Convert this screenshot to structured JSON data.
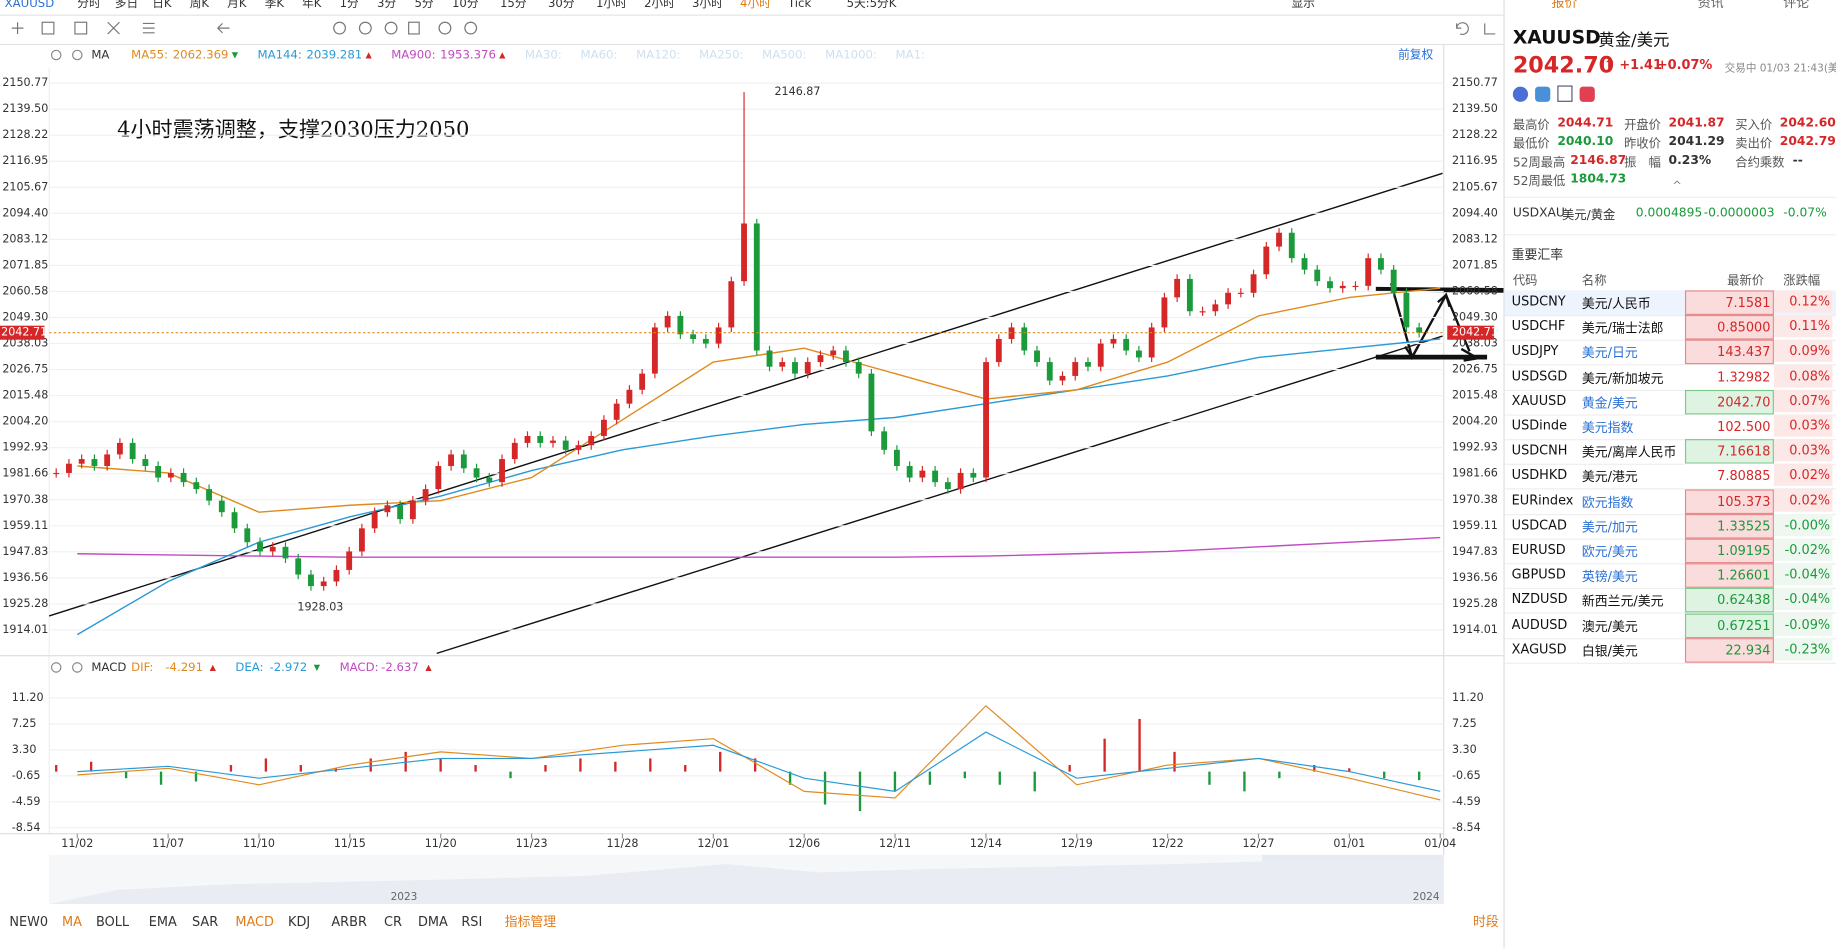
{
  "toolbar": {
    "symbol": "XAUUSD",
    "periods": [
      "分时",
      "多日",
      "日K",
      "周K",
      "月K",
      "季K",
      "年K",
      "1分",
      "3分",
      "5分",
      "10分",
      "15分",
      "30分",
      "1小时",
      "2小时",
      "3小时",
      "4小时",
      "Tick",
      "5天:5分K"
    ],
    "active": "4小时",
    "display": "显示"
  },
  "chart": {
    "ma_legend": {
      "name": "MA",
      "items": [
        {
          "label": "MA55:",
          "value": "2062.369",
          "color": "#e08a1e",
          "dir": "down"
        },
        {
          "label": "MA144:",
          "value": "2039.281",
          "color": "#2a9ad6",
          "dir": "up"
        },
        {
          "label": "MA900:",
          "value": "1953.376",
          "color": "#c04ac0",
          "dir": "up"
        }
      ],
      "faded": [
        "MA30:",
        "MA60:",
        "MA120:",
        "MA250:",
        "MA500:",
        "MA1000:",
        "MA1:"
      ]
    },
    "restore": "前复权",
    "annotation": "4小时震荡调整，支撑2030压力2050",
    "price_axis": [
      "2150.77",
      "2139.50",
      "2128.22",
      "2116.95",
      "2105.67",
      "2094.40",
      "2083.12",
      "2071.85",
      "2060.58",
      "2049.30",
      "2038.03",
      "2026.75",
      "2015.48",
      "2004.20",
      "1992.93",
      "1981.66",
      "1970.38",
      "1959.11",
      "1947.83",
      "1936.56",
      "1925.28",
      "1914.01"
    ],
    "current_price": "2042.71",
    "high_label": "2146.87",
    "low_label": "1928.03",
    "dates": [
      "11/02",
      "11/07",
      "11/10",
      "11/15",
      "11/20",
      "11/23",
      "11/28",
      "12/01",
      "12/06",
      "12/11",
      "12/14",
      "12/19",
      "12/22",
      "12/27",
      "01/01",
      "01/04"
    ],
    "closes": [
      1982,
      1986,
      1988,
      1985,
      1990,
      1995,
      1988,
      1985,
      1980,
      1982,
      1978,
      1975,
      1970,
      1965,
      1958,
      1952,
      1948,
      1950,
      1945,
      1938,
      1933,
      1935,
      1940,
      1948,
      1958,
      1965,
      1968,
      1962,
      1970,
      1975,
      1985,
      1990,
      1984,
      1980,
      1978,
      1988,
      1995,
      1998,
      1995,
      1996,
      1992,
      1994,
      1998,
      2005,
      2012,
      2018,
      2025,
      2045,
      2050,
      2042,
      2040,
      2038,
      2045,
      2065,
      2090,
      2035,
      2028,
      2030,
      2025,
      2030,
      2033,
      2035,
      2030,
      2025,
      2000,
      1992,
      1985,
      1980,
      1983,
      1978,
      1975,
      1982,
      1980,
      2030,
      2040,
      2045,
      2035,
      2030,
      2022,
      2024,
      2030,
      2028,
      2038,
      2040,
      2035,
      2032,
      2045,
      2058,
      2066,
      2052,
      2052,
      2055,
      2060,
      2060,
      2068,
      2080,
      2086,
      2075,
      2070,
      2065,
      2062,
      2063,
      2063,
      2075,
      2070,
      2060,
      2045,
      2042.71
    ],
    "ma55": [
      1985,
      1982,
      1965,
      1968,
      1970,
      1980,
      2005,
      2030,
      2036,
      2025,
      2014,
      2018,
      2030,
      2050,
      2058,
      2062
    ],
    "ma144": [
      1912,
      1935,
      1952,
      1963,
      1972,
      1983,
      1992,
      1998,
      2003,
      2006,
      2012,
      2018,
      2024,
      2032,
      2036,
      2040
    ],
    "ma900": [
      1947,
      1946.5,
      1946,
      1945.5,
      1945.5,
      1945.5,
      1945.5,
      1945.5,
      1945.5,
      1945.5,
      1946,
      1947,
      1948,
      1950,
      1952,
      1954
    ],
    "macd": {
      "name": "MACD",
      "items": [
        {
          "label": "DIF:",
          "value": "-4.291",
          "color": "#e08a1e",
          "dir": "up"
        },
        {
          "label": "DEA:",
          "value": "-2.972",
          "color": "#2a9ad6",
          "dir": "down"
        },
        {
          "label": "MACD:",
          "value": "-2.637",
          "color": "#c04ac0",
          "dir": "up"
        }
      ],
      "axis": [
        "11.20",
        "7.25",
        "3.30",
        "-0.65",
        "-4.59",
        "-8.54"
      ],
      "dif": [
        -0.5,
        0.5,
        -2,
        1,
        3,
        2,
        4,
        5,
        -3,
        -4,
        10,
        -2,
        1,
        2,
        -1,
        -4.3
      ],
      "dea": [
        0,
        0.8,
        -1,
        0.5,
        2,
        2,
        3,
        4,
        -1,
        -3,
        6,
        -1,
        0.5,
        2,
        0,
        -3
      ],
      "histogram": [
        1,
        1.5,
        -1,
        -2,
        -1.5,
        1,
        2,
        1,
        0.5,
        2,
        3,
        2,
        1,
        -1,
        1,
        2,
        1.5,
        2,
        1,
        3,
        2,
        -2,
        -5,
        -6,
        -3,
        -2,
        -1,
        -2,
        -3,
        1,
        5,
        8,
        3,
        -2,
        -3,
        -1,
        1,
        0.5,
        -1,
        -1.3
      ]
    },
    "years": [
      "2023",
      "2024"
    ]
  },
  "bottom_tabs": [
    "NEW0",
    "MA",
    "BOLL",
    "EMA",
    "SAR",
    "MACD",
    "KDJ",
    "ARBR",
    "CR",
    "DMA",
    "RSI",
    "指标管理"
  ],
  "bottom_active": [
    "MA",
    "MACD"
  ],
  "bottom_right": "时段",
  "panel": {
    "tabs": [
      "报价",
      "资讯",
      "评论"
    ],
    "symbol": "XAUUSD",
    "name": "黄金/美元",
    "price": "2042.70",
    "change": "+1.41",
    "pct": "+0.07%",
    "status": "交易中 01/03 21:43(美",
    "stats": [
      [
        {
          "k": "最高价",
          "v": "2044.71",
          "c": "up"
        },
        {
          "k": "开盘价",
          "v": "2041.87",
          "c": "up"
        },
        {
          "k": "买入价",
          "v": "2042.60",
          "c": "up"
        }
      ],
      [
        {
          "k": "最低价",
          "v": "2040.10",
          "c": "down"
        },
        {
          "k": "昨收价",
          "v": "2041.29",
          "c": "flat"
        },
        {
          "k": "卖出价",
          "v": "2042.79",
          "c": "up"
        }
      ],
      [
        {
          "k": "52周最高",
          "v": "2146.87",
          "c": "up"
        },
        {
          "k": "振　幅",
          "v": "0.23%",
          "c": "flat"
        },
        {
          "k": "合约乘数",
          "v": "--",
          "c": "flat"
        }
      ],
      [
        {
          "k": "52周最低",
          "v": "1804.73",
          "c": "down"
        }
      ]
    ],
    "inverse": {
      "code": "USDXAU",
      "name": "美元/黄金",
      "price": "0.0004895",
      "change": "-0.0000003",
      "pct": "-0.07%"
    },
    "section": "重要汇率",
    "columns": [
      "代码",
      "名称",
      "最新价",
      "涨跌幅"
    ],
    "rows": [
      [
        "USDCNY",
        "美元/人民币",
        "7.1581",
        "0.12%"
      ],
      [
        "USDCHF",
        "美元/瑞士法郎",
        "0.85000",
        "0.11%"
      ],
      [
        "USDJPY",
        "美元/日元",
        "143.437",
        "0.09%"
      ],
      [
        "USDSGD",
        "美元/新加坡元",
        "1.32982",
        "0.08%"
      ],
      [
        "XAUUSD",
        "黄金/美元",
        "2042.70",
        "0.07%"
      ],
      [
        "USDinde",
        "美元指数",
        "102.500",
        "0.03%"
      ],
      [
        "USDCNH",
        "美元/离岸人民币",
        "7.16618",
        "0.03%"
      ],
      [
        "USDHKD",
        "美元/港元",
        "7.80885",
        "0.02%"
      ],
      [
        "EURindex",
        "欧元指数",
        "105.373",
        "0.02%"
      ],
      [
        "USDCAD",
        "美元/加元",
        "1.33525",
        "-0.00%"
      ],
      [
        "EURUSD",
        "欧元/美元",
        "1.09195",
        "-0.02%"
      ],
      [
        "GBPUSD",
        "英镑/美元",
        "1.26601",
        "-0.04%"
      ],
      [
        "NZDUSD",
        "新西兰元/美元",
        "0.62438",
        "-0.04%"
      ],
      [
        "AUDUSD",
        "澳元/美元",
        "0.67251",
        "-0.09%"
      ],
      [
        "XAGUSD",
        "白银/美元",
        "22.934",
        "-0.23%"
      ]
    ]
  }
}
